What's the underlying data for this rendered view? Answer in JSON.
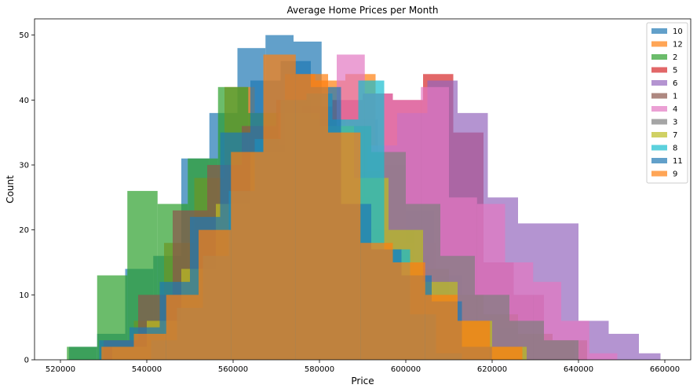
{
  "chart_data": {
    "type": "histogram",
    "title": "Average Home Prices per Month",
    "xlabel": "Price",
    "ylabel": "Count",
    "xlim": [
      514000,
      666000
    ],
    "ylim": [
      0,
      52.5
    ],
    "xticks": [
      520000,
      540000,
      560000,
      580000,
      600000,
      620000,
      640000,
      660000
    ],
    "yticks": [
      0,
      10,
      20,
      30,
      40,
      50
    ],
    "legend_placement": "top-right",
    "alpha": 0.7,
    "series": [
      {
        "name": "10",
        "color": "#1f77b4",
        "edges": [
          522000,
          528500,
          535000,
          541500,
          548000,
          554500,
          561000,
          567500,
          574000,
          580500,
          587000,
          593500,
          600000,
          606500,
          613000,
          619500,
          626000
        ],
        "counts": [
          2,
          4,
          14,
          16,
          31,
          38,
          48,
          50,
          49,
          34,
          37,
          30,
          23,
          13,
          6,
          5
        ]
      },
      {
        "name": "12",
        "color": "#ff7f0e",
        "edges": [
          530000,
          537000,
          544000,
          551000,
          558000,
          565000,
          572000,
          579000,
          586000,
          593000,
          600000,
          607000,
          614000,
          621000,
          628000
        ],
        "counts": [
          2,
          6,
          18,
          28,
          42,
          38,
          44,
          43,
          44,
          30,
          18,
          10,
          5,
          2
        ]
      },
      {
        "name": "2",
        "color": "#2ca02c",
        "edges": [
          521500,
          528500,
          535500,
          542500,
          549500,
          556500,
          563500,
          570500,
          577500,
          584500,
          591500,
          598500,
          605500,
          612500
        ],
        "counts": [
          2,
          13,
          26,
          24,
          31,
          42,
          38,
          33,
          28,
          25,
          20,
          16,
          5
        ]
      },
      {
        "name": "5",
        "color": "#d62728",
        "edges": [
          548000,
          555000,
          562000,
          569000,
          576000,
          583000,
          590000,
          597000,
          604000,
          611000,
          618000,
          625000,
          632000,
          639000
        ],
        "counts": [
          3,
          8,
          21,
          31,
          39,
          40,
          41,
          40,
          44,
          35,
          15,
          10,
          3
        ]
      },
      {
        "name": "6",
        "color": "#9467bd",
        "edges": [
          563000,
          570000,
          577000,
          584000,
          591000,
          598000,
          605000,
          612000,
          619000,
          626000,
          633000,
          640000,
          647000,
          654000,
          659000
        ],
        "counts": [
          3,
          8,
          18,
          26,
          33,
          38,
          43,
          38,
          25,
          21,
          21,
          6,
          4,
          1
        ]
      },
      {
        "name": "1",
        "color": "#8c564b",
        "edges": [
          530000,
          538000,
          546000,
          554000,
          562000,
          570000,
          578000,
          586000,
          594000,
          602000,
          610000,
          618000,
          626000,
          634000,
          642000
        ],
        "counts": [
          3,
          10,
          23,
          30,
          36,
          40,
          37,
          29,
          20,
          14,
          10,
          7,
          4,
          3
        ]
      },
      {
        "name": "4",
        "color": "#e377c2",
        "edges": [
          558000,
          564500,
          571000,
          577500,
          584000,
          590500,
          597000,
          603500,
          610000,
          616500,
          623000,
          629500,
          636000,
          642500,
          649000
        ],
        "counts": [
          4,
          10,
          19,
          30,
          47,
          41,
          40,
          42,
          25,
          24,
          15,
          12,
          6,
          1
        ]
      },
      {
        "name": "3",
        "color": "#7f7f7f",
        "edges": [
          536000,
          544000,
          552000,
          560000,
          568000,
          576000,
          584000,
          592000,
          600000,
          608000,
          616000,
          624000,
          632000,
          640000
        ],
        "counts": [
          2,
          6,
          12,
          20,
          28,
          34,
          36,
          32,
          24,
          16,
          10,
          6,
          3
        ]
      },
      {
        "name": "7",
        "color": "#bcbd22",
        "edges": [
          532000,
          540000,
          548000,
          556000,
          564000,
          572000,
          580000,
          588000,
          596000,
          604000,
          612000,
          620000,
          628000
        ],
        "counts": [
          2,
          6,
          14,
          24,
          32,
          38,
          36,
          28,
          20,
          12,
          6,
          2
        ]
      },
      {
        "name": "8",
        "color": "#17becf",
        "edges": [
          541000,
          547000,
          553000,
          559000,
          565000,
          571000,
          577000,
          583000,
          589000,
          595000,
          601000,
          607000,
          613000
        ],
        "counts": [
          3,
          8,
          16,
          26,
          34,
          40,
          41,
          37,
          43,
          17,
          7,
          1
        ]
      },
      {
        "name": "11",
        "color": "#1f77b4",
        "edges": [
          529000,
          536000,
          543000,
          550000,
          557000,
          564000,
          571000,
          578000,
          585000,
          592000,
          599000,
          606000,
          613000,
          620000
        ],
        "counts": [
          3,
          5,
          12,
          22,
          35,
          43,
          46,
          42,
          24,
          17,
          13,
          9,
          2
        ]
      },
      {
        "name": "9",
        "color": "#ff7f0e",
        "edges": [
          529500,
          537000,
          544500,
          552000,
          559500,
          567000,
          574500,
          582000,
          589500,
          597000,
          604500,
          612000,
          619500,
          627000
        ],
        "counts": [
          2,
          4,
          10,
          20,
          32,
          47,
          44,
          35,
          18,
          15,
          10,
          6,
          2
        ]
      }
    ]
  }
}
